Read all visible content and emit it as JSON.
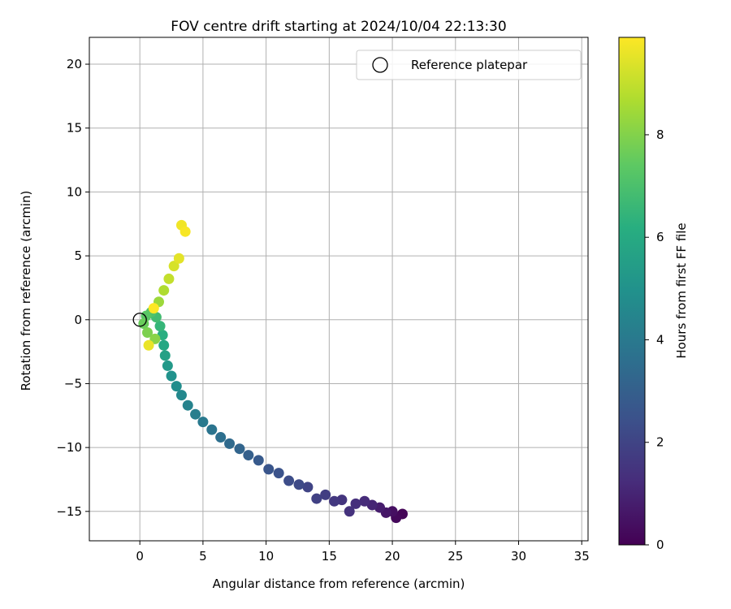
{
  "chart_data": {
    "type": "scatter",
    "title": "FOV centre drift starting at 2024/10/04 22:13:30",
    "xlabel": "Angular distance from reference (arcmin)",
    "ylabel": "Rotation from reference (arcmin)",
    "xlim": [
      -4,
      35.5
    ],
    "ylim": [
      -17.3,
      22.1
    ],
    "xticks": [
      0,
      5,
      10,
      15,
      20,
      25,
      30,
      35
    ],
    "yticks": [
      -15,
      -10,
      -5,
      0,
      5,
      10,
      15,
      20
    ],
    "grid": true,
    "legend": {
      "placement": "top-right",
      "entries": [
        "Reference platepar"
      ]
    },
    "reference_point": {
      "x": 0,
      "y": 0,
      "label": "Reference platepar"
    },
    "colorbar": {
      "label": "Hours from first FF file",
      "colormap": "viridis",
      "range": [
        0,
        9.9
      ],
      "ticks": [
        0,
        2,
        4,
        6,
        8
      ]
    },
    "points": [
      {
        "x": 20.8,
        "y": -15.2,
        "t": 0.1
      },
      {
        "x": 20.3,
        "y": -15.5,
        "t": 0.2
      },
      {
        "x": 20.0,
        "y": -15.0,
        "t": 0.4
      },
      {
        "x": 19.5,
        "y": -15.1,
        "t": 0.6
      },
      {
        "x": 19.0,
        "y": -14.7,
        "t": 0.8
      },
      {
        "x": 18.4,
        "y": -14.5,
        "t": 1.0
      },
      {
        "x": 17.8,
        "y": -14.2,
        "t": 1.2
      },
      {
        "x": 17.1,
        "y": -14.4,
        "t": 1.3
      },
      {
        "x": 16.6,
        "y": -15.0,
        "t": 1.4
      },
      {
        "x": 16.0,
        "y": -14.1,
        "t": 1.5
      },
      {
        "x": 15.4,
        "y": -14.2,
        "t": 1.6
      },
      {
        "x": 14.7,
        "y": -13.7,
        "t": 1.8
      },
      {
        "x": 14.0,
        "y": -14.0,
        "t": 1.9
      },
      {
        "x": 13.3,
        "y": -13.1,
        "t": 2.0
      },
      {
        "x": 12.6,
        "y": -12.9,
        "t": 2.2
      },
      {
        "x": 11.8,
        "y": -12.6,
        "t": 2.3
      },
      {
        "x": 11.0,
        "y": -12.0,
        "t": 2.5
      },
      {
        "x": 10.2,
        "y": -11.7,
        "t": 2.6
      },
      {
        "x": 9.4,
        "y": -11.0,
        "t": 2.8
      },
      {
        "x": 8.6,
        "y": -10.6,
        "t": 3.0
      },
      {
        "x": 7.9,
        "y": -10.1,
        "t": 3.2
      },
      {
        "x": 7.1,
        "y": -9.7,
        "t": 3.4
      },
      {
        "x": 6.4,
        "y": -9.2,
        "t": 3.6
      },
      {
        "x": 5.7,
        "y": -8.6,
        "t": 3.8
      },
      {
        "x": 5.0,
        "y": -8.0,
        "t": 4.0
      },
      {
        "x": 4.4,
        "y": -7.4,
        "t": 4.2
      },
      {
        "x": 3.8,
        "y": -6.7,
        "t": 4.4
      },
      {
        "x": 3.3,
        "y": -5.9,
        "t": 4.6
      },
      {
        "x": 2.9,
        "y": -5.2,
        "t": 4.8
      },
      {
        "x": 2.5,
        "y": -4.4,
        "t": 5.0
      },
      {
        "x": 2.2,
        "y": -3.6,
        "t": 5.3
      },
      {
        "x": 2.0,
        "y": -2.8,
        "t": 5.6
      },
      {
        "x": 1.9,
        "y": -2.0,
        "t": 5.9
      },
      {
        "x": 1.8,
        "y": -1.2,
        "t": 6.2
      },
      {
        "x": 1.6,
        "y": -0.5,
        "t": 6.5
      },
      {
        "x": 1.3,
        "y": 0.2,
        "t": 6.8
      },
      {
        "x": 0.9,
        "y": 0.6,
        "t": 7.1
      },
      {
        "x": 0.5,
        "y": 0.3,
        "t": 7.3
      },
      {
        "x": 0.3,
        "y": -0.3,
        "t": 7.6
      },
      {
        "x": 0.6,
        "y": -1.0,
        "t": 7.9
      },
      {
        "x": 1.2,
        "y": -1.5,
        "t": 8.1
      },
      {
        "x": 1.5,
        "y": 1.4,
        "t": 8.4
      },
      {
        "x": 1.9,
        "y": 2.3,
        "t": 8.7
      },
      {
        "x": 2.3,
        "y": 3.2,
        "t": 9.0
      },
      {
        "x": 2.7,
        "y": 4.2,
        "t": 9.3
      },
      {
        "x": 3.1,
        "y": 4.8,
        "t": 9.5
      },
      {
        "x": 3.3,
        "y": 7.4,
        "t": 9.7
      },
      {
        "x": 3.6,
        "y": 6.9,
        "t": 9.8
      },
      {
        "x": 0.7,
        "y": -2.0,
        "t": 9.6
      },
      {
        "x": 1.1,
        "y": 0.9,
        "t": 9.9
      }
    ]
  }
}
